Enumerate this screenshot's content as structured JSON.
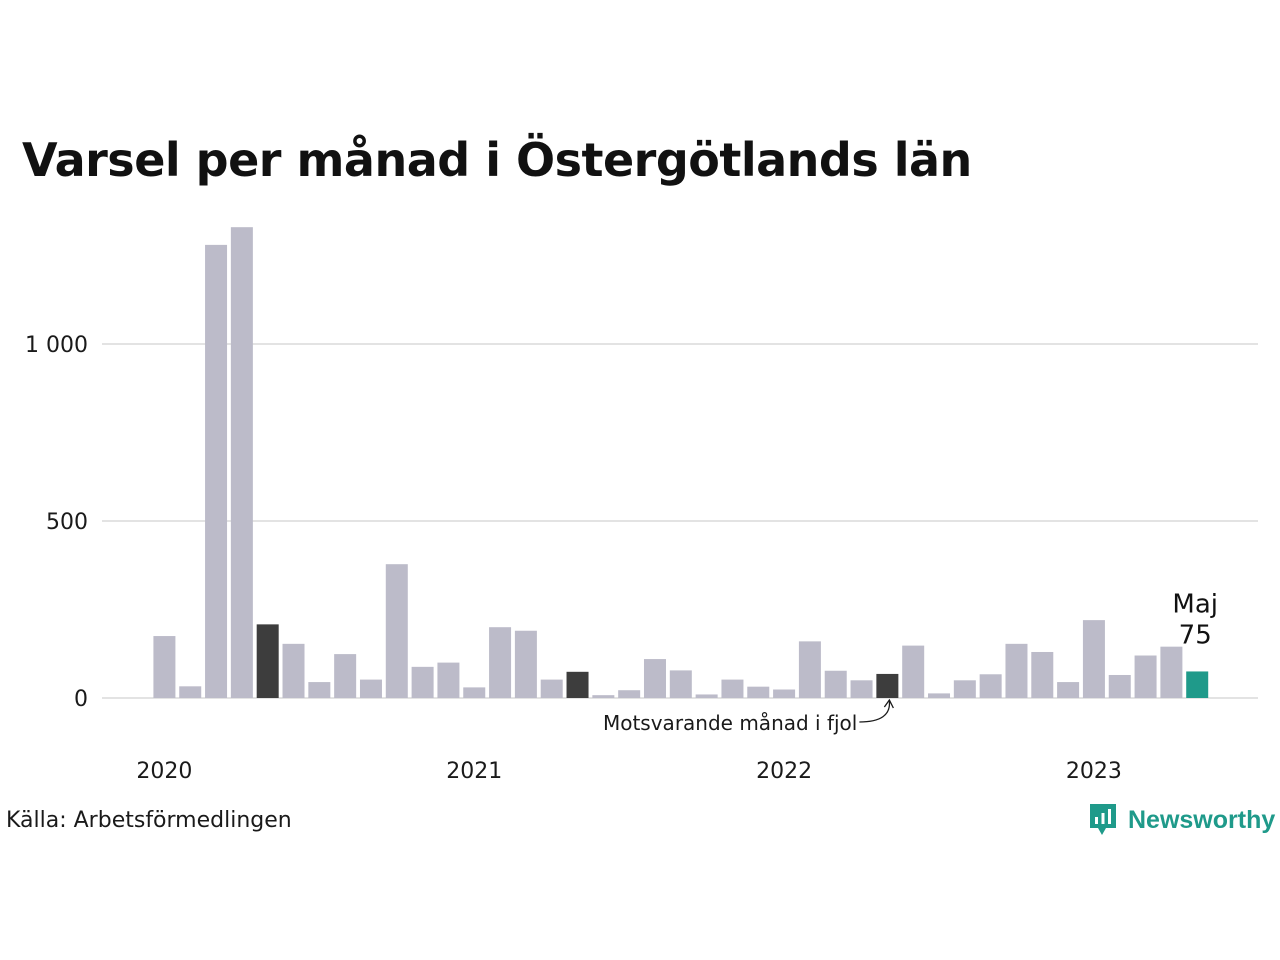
{
  "title": "Varsel per månad i Östergötlands län",
  "source": "Källa: Arbetsförmedlingen",
  "brand": {
    "name": "Newsworthy",
    "icon": "newsworthy-logo-icon",
    "color": "#1f9a8a"
  },
  "chart_data": {
    "type": "bar",
    "title": "Varsel per månad i Östergötlands län",
    "xlabel": "",
    "ylabel": "",
    "ylim": [
      0,
      1350
    ],
    "y_ticks": [
      0,
      500,
      1000
    ],
    "y_tick_labels": [
      "0",
      "500",
      "1 000"
    ],
    "x_tick_labels": [
      "2020",
      "2021",
      "2022",
      "2023"
    ],
    "grid": true,
    "colors": {
      "default": "#bcbbc9",
      "same_month": "#3d3d3d",
      "latest": "#1f9a8a",
      "grid": "#e3e3e3"
    },
    "categories": [
      "2020-01",
      "2020-02",
      "2020-03",
      "2020-04",
      "2020-05",
      "2020-06",
      "2020-07",
      "2020-08",
      "2020-09",
      "2020-10",
      "2020-11",
      "2020-12",
      "2021-01",
      "2021-02",
      "2021-03",
      "2021-04",
      "2021-05",
      "2021-06",
      "2021-07",
      "2021-08",
      "2021-09",
      "2021-10",
      "2021-11",
      "2021-12",
      "2022-01",
      "2022-02",
      "2022-03",
      "2022-04",
      "2022-05",
      "2022-06",
      "2022-07",
      "2022-08",
      "2022-09",
      "2022-10",
      "2022-11",
      "2022-12",
      "2023-01",
      "2023-02",
      "2023-03",
      "2023-04",
      "2023-05"
    ],
    "values": [
      175,
      33,
      1280,
      1330,
      208,
      153,
      45,
      124,
      52,
      378,
      88,
      100,
      30,
      200,
      190,
      52,
      74,
      8,
      22,
      110,
      78,
      10,
      52,
      32,
      24,
      160,
      77,
      50,
      68,
      148,
      13,
      50,
      67,
      153,
      130,
      45,
      220,
      65,
      120,
      145,
      75
    ],
    "highlight_same_month": [
      "2020-05",
      "2021-05",
      "2022-05"
    ],
    "latest": {
      "label": "Maj",
      "value": "75"
    },
    "annotations": [
      {
        "text": "Motsvarande månad i fjol",
        "target": "2022-05"
      }
    ]
  }
}
